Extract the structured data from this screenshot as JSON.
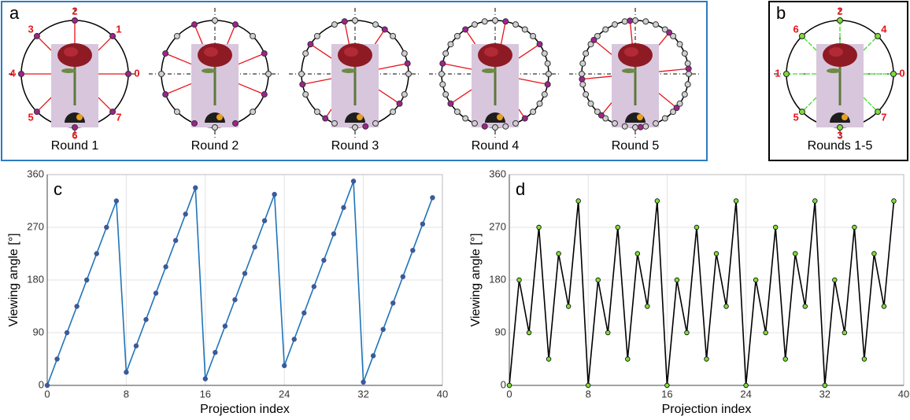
{
  "panels": {
    "a": {
      "label": "a",
      "rounds": [
        "Round 1",
        "Round 2",
        "Round 3",
        "Round 4",
        "Round 5"
      ],
      "numbers": [
        "0",
        "1",
        "2",
        "3",
        "4",
        "5",
        "6",
        "7"
      ]
    },
    "b": {
      "label": "b",
      "caption": "Rounds 1-5",
      "numbers": [
        "0",
        "1",
        "2",
        "3",
        "4",
        "5",
        "6",
        "7"
      ]
    }
  },
  "chart_data": [
    {
      "type": "line",
      "label": "c",
      "xlabel": "Projection index",
      "ylabel": "Viewing angle [°]",
      "x": [
        0,
        1,
        2,
        3,
        4,
        5,
        6,
        7,
        8,
        9,
        10,
        11,
        12,
        13,
        14,
        15,
        16,
        17,
        18,
        19,
        20,
        21,
        22,
        23,
        24,
        25,
        26,
        27,
        28,
        29,
        30,
        31,
        32,
        33,
        34,
        35,
        36,
        37,
        38,
        39
      ],
      "values": [
        0,
        45,
        90,
        135,
        180,
        225,
        270,
        315,
        22.5,
        67.5,
        112.5,
        157.5,
        202.5,
        247.5,
        292.5,
        337.5,
        11.25,
        56.25,
        101.25,
        146.25,
        191.25,
        236.25,
        281.25,
        326.25,
        33.75,
        78.75,
        123.75,
        168.75,
        213.75,
        258.75,
        303.75,
        348.75,
        5.625,
        50.625,
        95.625,
        140.625,
        185.625,
        230.625,
        275.625,
        320.625
      ],
      "color": "#1f74b8",
      "marker_color": "#3b5a99",
      "xlim": [
        0,
        40
      ],
      "xticks": [
        0,
        8,
        16,
        24,
        32,
        40
      ],
      "ylim": [
        0,
        360
      ],
      "yticks": [
        0,
        90,
        180,
        270,
        360
      ],
      "grid": true
    },
    {
      "type": "line",
      "label": "d",
      "xlabel": "Projection index",
      "ylabel": "Viewing angle [°]",
      "x": [
        0,
        1,
        2,
        3,
        4,
        5,
        6,
        7,
        8,
        9,
        10,
        11,
        12,
        13,
        14,
        15,
        16,
        17,
        18,
        19,
        20,
        21,
        22,
        23,
        24,
        25,
        26,
        27,
        28,
        29,
        30,
        31,
        32,
        33,
        34,
        35,
        36,
        37,
        38,
        39
      ],
      "values": [
        0,
        180,
        90,
        270,
        45,
        225,
        135,
        315,
        0,
        180,
        90,
        270,
        45,
        225,
        135,
        315,
        0,
        180,
        90,
        270,
        45,
        225,
        135,
        315,
        0,
        180,
        90,
        270,
        45,
        225,
        135,
        315,
        0,
        180,
        90,
        270,
        45,
        225,
        135,
        315
      ],
      "color": "#000000",
      "marker_color": "#7fdc3a",
      "xlim": [
        0,
        40
      ],
      "xticks": [
        0,
        8,
        16,
        24,
        32,
        40
      ],
      "ylim": [
        0,
        360
      ],
      "yticks": [
        0,
        90,
        180,
        270,
        360
      ],
      "grid": true
    }
  ]
}
